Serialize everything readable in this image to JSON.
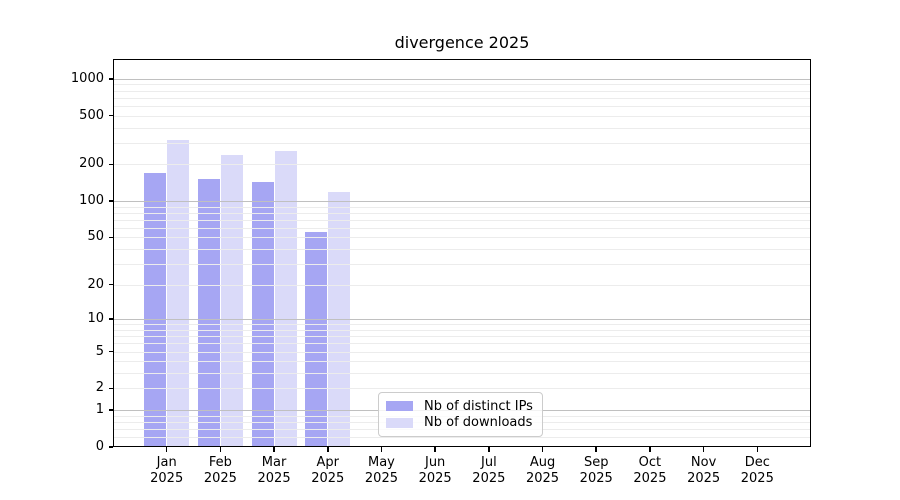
{
  "title": "divergence 2025",
  "chart_data": {
    "type": "bar",
    "title": "divergence 2025",
    "x_categories": [
      "Jan",
      "Feb",
      "Mar",
      "Apr",
      "May",
      "Jun",
      "Jul",
      "Aug",
      "Sep",
      "Oct",
      "Nov",
      "Dec"
    ],
    "x_year": "2025",
    "series": [
      {
        "name": "Nb of distinct IPs",
        "color": "#a6a6f3",
        "values": [
          170,
          152,
          144,
          56,
          0,
          0,
          0,
          0,
          0,
          0,
          0,
          0
        ]
      },
      {
        "name": "Nb of downloads",
        "color": "#dadaf9",
        "values": [
          318,
          238,
          257,
          118,
          0,
          0,
          0,
          0,
          0,
          0,
          0,
          0
        ]
      }
    ],
    "yscale": "log1p",
    "yticks": [
      0,
      1,
      2,
      5,
      10,
      20,
      50,
      100,
      200,
      500,
      1000
    ],
    "ylim": [
      0,
      1450
    ],
    "grid": true,
    "legend_position": "lower center",
    "colors": {
      "major_grid": "#c0c0c0",
      "minor_grid": "#ececec",
      "frame": "#000000",
      "text": "#000000",
      "legend_border": "#cccccc"
    }
  }
}
